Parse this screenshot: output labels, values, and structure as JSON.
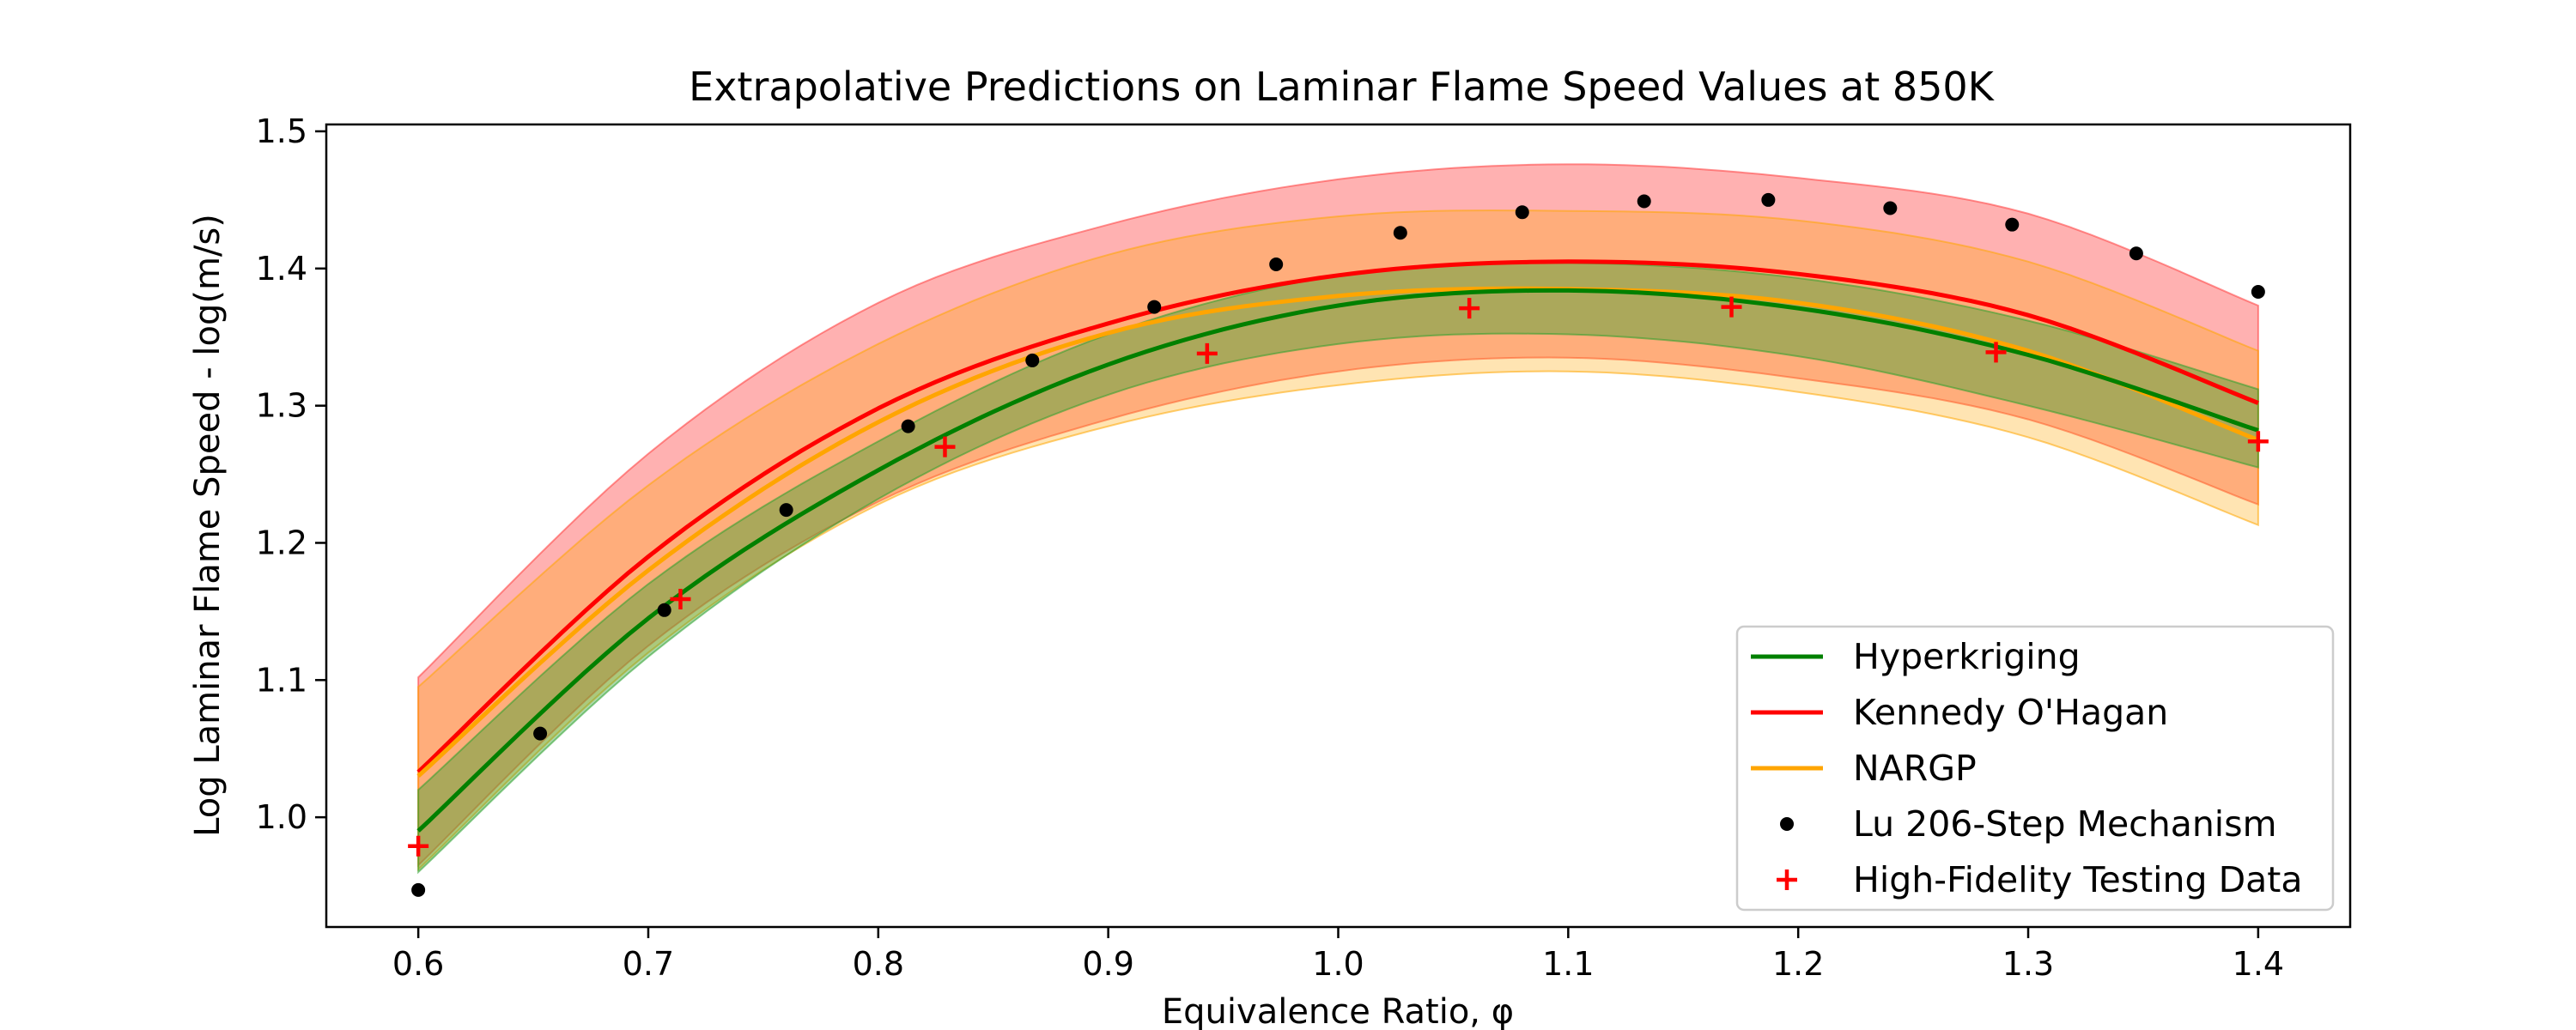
{
  "chart_data": {
    "type": "line",
    "title": "Extrapolative Predictions on Laminar Flame Speed Values at 850K",
    "xlabel": "Equivalence Ratio, φ",
    "ylabel": "Log Laminar Flame Speed - log(m/s)",
    "xlim": [
      0.56,
      1.44
    ],
    "ylim": [
      0.92,
      1.505
    ],
    "xticks": [
      0.6,
      0.7,
      0.8,
      0.9,
      1.0,
      1.1,
      1.2,
      1.3,
      1.4
    ],
    "xtick_labels": [
      "0.6",
      "0.7",
      "0.8",
      "0.9",
      "1.0",
      "1.1",
      "1.2",
      "1.3",
      "1.4"
    ],
    "yticks": [
      1.0,
      1.1,
      1.2,
      1.3,
      1.4,
      1.5
    ],
    "ytick_labels": [
      "1.0",
      "1.1",
      "1.2",
      "1.3",
      "1.4",
      "1.5"
    ],
    "grid": false,
    "legend_position": "lower-right",
    "x": [
      0.6,
      0.7,
      0.8,
      0.9,
      1.0,
      1.1,
      1.2,
      1.3,
      1.4
    ],
    "series": [
      {
        "name": "Hyperkriging",
        "color": "#008000",
        "band_color": "#2ca02c",
        "values": [
          0.99,
          1.145,
          1.253,
          1.33,
          1.373,
          1.384,
          1.371,
          1.337,
          1.282
        ],
        "band_lower": [
          0.96,
          1.117,
          1.232,
          1.308,
          1.345,
          1.352,
          1.336,
          1.3,
          1.255
        ],
        "band_upper": [
          1.02,
          1.17,
          1.274,
          1.352,
          1.395,
          1.404,
          1.393,
          1.362,
          1.312
        ]
      },
      {
        "name": "Kennedy O'Hagan",
        "color": "#ff0000",
        "band_color": "#ff3b3b",
        "values": [
          1.033,
          1.19,
          1.298,
          1.36,
          1.395,
          1.405,
          1.396,
          1.366,
          1.302
        ],
        "band_lower": [
          0.965,
          1.125,
          1.23,
          1.29,
          1.325,
          1.335,
          1.32,
          1.29,
          1.228
        ],
        "band_upper": [
          1.102,
          1.265,
          1.375,
          1.432,
          1.465,
          1.476,
          1.466,
          1.44,
          1.373
        ]
      },
      {
        "name": "NARGP",
        "color": "#ffa500",
        "band_color": "#ffa500",
        "values": [
          1.03,
          1.18,
          1.288,
          1.353,
          1.38,
          1.385,
          1.375,
          1.34,
          1.275
        ],
        "band_lower": [
          0.962,
          1.12,
          1.228,
          1.285,
          1.315,
          1.325,
          1.31,
          1.277,
          1.213
        ],
        "band_upper": [
          1.095,
          1.242,
          1.345,
          1.41,
          1.438,
          1.442,
          1.435,
          1.405,
          1.34
        ]
      }
    ],
    "scatter_series": [
      {
        "name": "Lu 206-Step Mechanism",
        "marker": "dot",
        "color": "#000000",
        "x": [
          0.6,
          0.653,
          0.707,
          0.76,
          0.813,
          0.867,
          0.92,
          0.973,
          1.027,
          1.08,
          1.133,
          1.187,
          1.24,
          1.293,
          1.347,
          1.4
        ],
        "y": [
          0.947,
          1.061,
          1.151,
          1.224,
          1.285,
          1.333,
          1.372,
          1.403,
          1.426,
          1.441,
          1.449,
          1.45,
          1.444,
          1.432,
          1.411,
          1.383
        ]
      },
      {
        "name": "High-Fidelity Testing Data",
        "marker": "plus",
        "color": "#ff0000",
        "x": [
          0.6,
          0.714,
          0.829,
          0.943,
          1.057,
          1.171,
          1.286,
          1.4
        ],
        "y": [
          0.979,
          1.159,
          1.27,
          1.338,
          1.371,
          1.372,
          1.339,
          1.274
        ]
      }
    ]
  }
}
